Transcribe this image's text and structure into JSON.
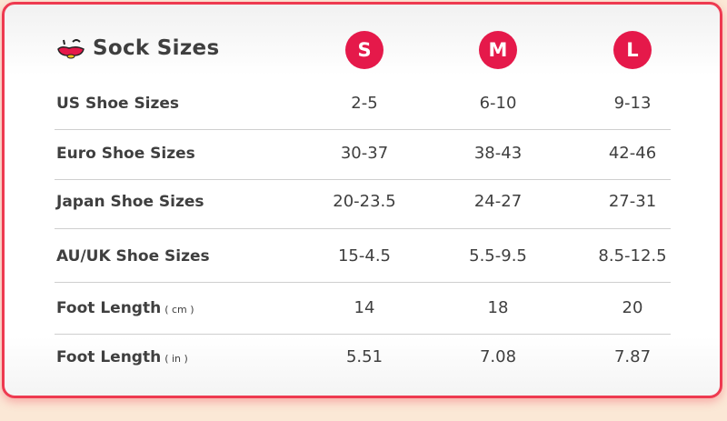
{
  "title": "Sock Sizes",
  "sizes": [
    "S",
    "M",
    "L"
  ],
  "colors": {
    "accent": "#e5194a",
    "border": "#ee3a50",
    "background": "#fbe8d6"
  },
  "rows": [
    {
      "label": "US Shoe  Sizes",
      "unit": "",
      "values": [
        "2-5",
        "6-10",
        "9-13"
      ]
    },
    {
      "label": "Euro Shoe  Sizes",
      "unit": "",
      "values": [
        "30-37",
        "38-43",
        "42-46"
      ]
    },
    {
      "label": "Japan Shoe  Sizes",
      "unit": "",
      "values": [
        "20-23.5",
        "24-27",
        "27-31"
      ]
    },
    {
      "label": "AU/UK  Shoe Sizes",
      "unit": "",
      "values": [
        "15-4.5",
        "5.5-9.5",
        "8.5-12.5"
      ]
    },
    {
      "label": "Foot Length",
      "unit": "( cm )",
      "values": [
        "14",
        "18",
        "20"
      ]
    },
    {
      "label": "Foot Length",
      "unit": "( in )",
      "values": [
        "5.51",
        "7.08",
        "7.87"
      ]
    }
  ]
}
